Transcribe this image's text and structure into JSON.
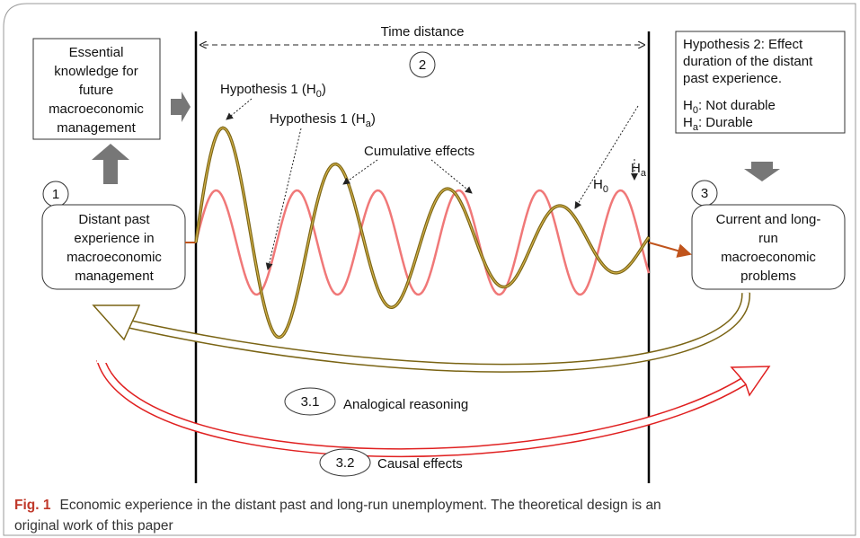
{
  "time_label": "Time distance",
  "circles": [
    "1",
    "2",
    "3",
    "3.1",
    "3.2"
  ],
  "boxes": {
    "essential": [
      "Essential",
      "knowledge for",
      "future",
      "macroeconomic",
      "management"
    ],
    "distant": [
      "Distant past",
      "experience in",
      "macroeconomic",
      "management"
    ],
    "current": [
      "Current and long-",
      "run",
      "macroeconomic",
      "problems"
    ]
  },
  "hypothesis2": {
    "lines": [
      "Hypothesis 2: Effect",
      "duration of the distant",
      "past experience."
    ],
    "h0": {
      "h": "H",
      "sub": "0",
      "text": ": Not durable"
    },
    "ha": {
      "h": "H",
      "sub": "a",
      "text": ": Durable"
    }
  },
  "labels": {
    "hyp1_h0": {
      "pre": "Hypothesis 1 (H",
      "sub": "0",
      "post": ")"
    },
    "hyp1_ha": {
      "pre": "Hypothesis 1 (H",
      "sub": "a",
      "post": ")"
    },
    "cumulative": "Cumulative effects",
    "h0": {
      "h": "H",
      "sub": "0"
    },
    "ha": {
      "h": "H",
      "sub": "a"
    },
    "analogical": "Analogical reasoning",
    "causal": "Causal effects"
  },
  "caption": {
    "fig": "Fig. 1",
    "line1": "Economic experience in the distant past and long-run unemployment. The theoretical design is an",
    "line2": "original work of this paper"
  }
}
